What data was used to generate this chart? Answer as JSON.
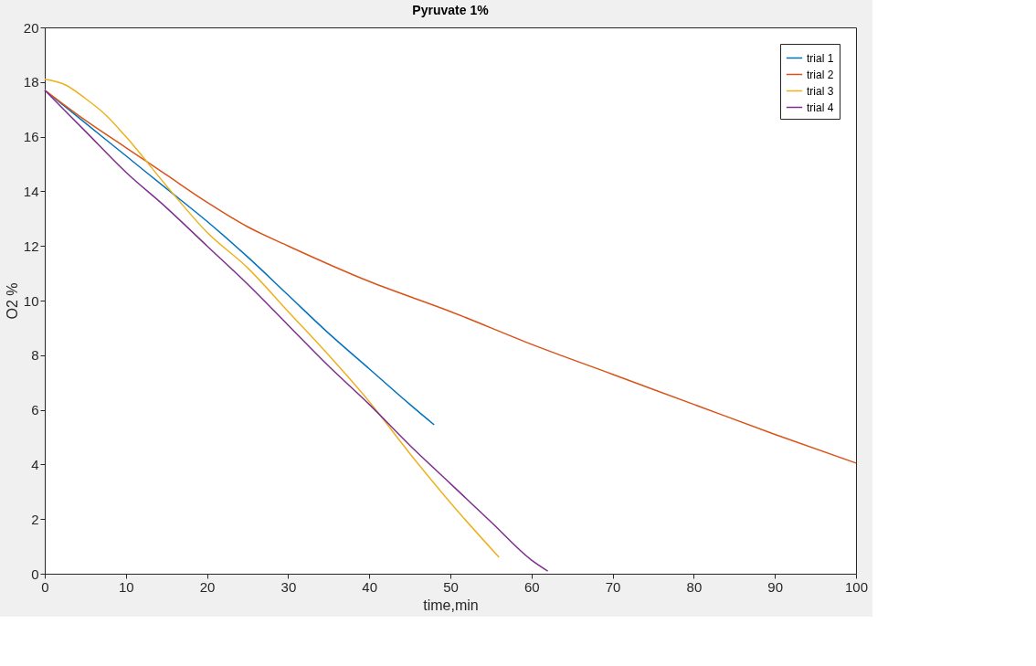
{
  "chart_data": {
    "type": "line",
    "title": "Pyruvate 1%",
    "xlabel": "time,min",
    "ylabel": "O2 %",
    "xlim": [
      0,
      100
    ],
    "xticks": [
      0,
      10,
      20,
      30,
      40,
      50,
      60,
      70,
      80,
      90,
      100
    ],
    "ylim": [
      0,
      20
    ],
    "yticks": [
      0,
      2,
      4,
      6,
      8,
      10,
      12,
      14,
      16,
      18,
      20
    ],
    "grid": false,
    "legend": "top right",
    "line_style": "solid",
    "marker": "none",
    "series": [
      {
        "name": "trial 1",
        "color": "#0072bd",
        "x": [
          0,
          5,
          10,
          15,
          20,
          25,
          30,
          35,
          40,
          45,
          48
        ],
        "values": [
          17.7,
          16.5,
          15.3,
          14.1,
          12.9,
          11.6,
          10.2,
          8.8,
          7.5,
          6.2,
          5.45
        ]
      },
      {
        "name": "trial 2",
        "color": "#d95319",
        "x": [
          0,
          5,
          10,
          15,
          20,
          25,
          30,
          40,
          50,
          60,
          70,
          80,
          90,
          100
        ],
        "values": [
          17.7,
          16.6,
          15.6,
          14.6,
          13.6,
          12.7,
          12.0,
          10.7,
          9.6,
          8.4,
          7.3,
          6.2,
          5.1,
          4.05
        ]
      },
      {
        "name": "trial 3",
        "color": "#edb120",
        "x": [
          0,
          2.5,
          5,
          7.5,
          10,
          15,
          20,
          25,
          30,
          35,
          40,
          45,
          50,
          56
        ],
        "values": [
          18.1,
          17.9,
          17.4,
          16.8,
          16.0,
          14.2,
          12.5,
          11.2,
          9.6,
          8.0,
          6.3,
          4.4,
          2.6,
          0.6
        ]
      },
      {
        "name": "trial 4",
        "color": "#7e2f8e",
        "x": [
          0,
          5,
          10,
          15,
          20,
          25,
          30,
          35,
          40,
          45,
          50,
          55,
          60,
          62
        ],
        "values": [
          17.7,
          16.2,
          14.7,
          13.4,
          12.0,
          10.6,
          9.1,
          7.6,
          6.2,
          4.7,
          3.3,
          1.9,
          0.5,
          0.1
        ]
      }
    ]
  }
}
